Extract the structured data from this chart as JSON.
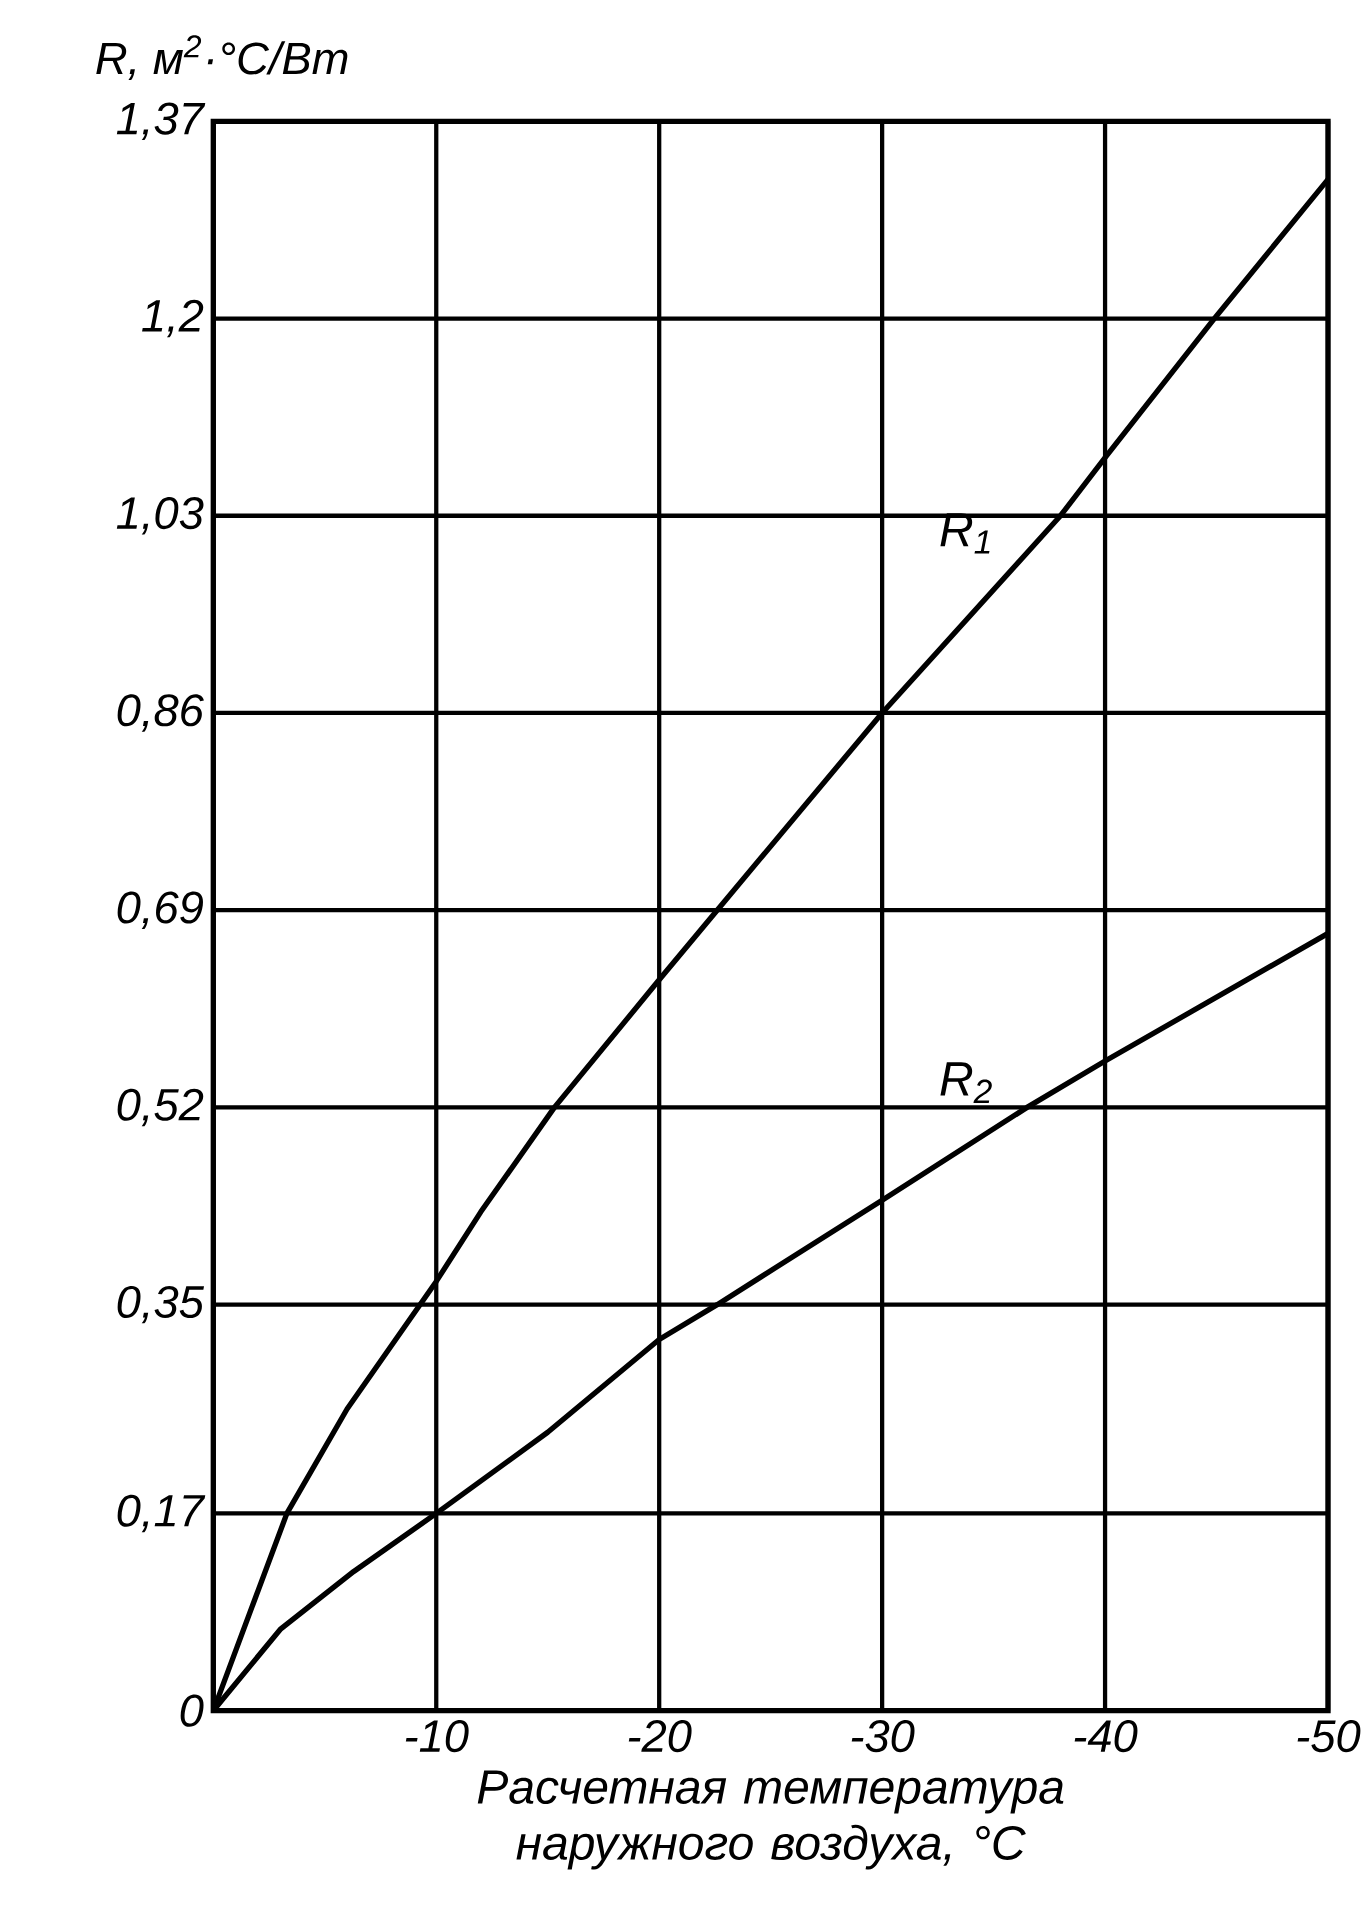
{
  "chart_data": {
    "type": "line",
    "ylabel": "R, м$^{2}$·°C/Вт",
    "xlabel": "Расчетная температура наружного воздуха, °C",
    "xlim": [
      0,
      -50
    ],
    "xticks": [
      -10,
      -20,
      -30,
      -40,
      -50
    ],
    "ylim": [
      0,
      1.37
    ],
    "yticks": [
      0,
      {
        "value": 0.17,
        "label": "0,17"
      },
      {
        "value": 0.35,
        "label": "0,35"
      },
      {
        "value": 0.52,
        "label": "0,52"
      },
      {
        "value": 0.69,
        "label": "0,69"
      },
      {
        "value": 0.86,
        "label": "0,86"
      },
      {
        "value": 1.03,
        "label": "1,03"
      },
      {
        "value": 1.2,
        "label": "1,2"
      },
      {
        "value": 1.37,
        "label": "1,37"
      }
    ],
    "grid": true,
    "marker": "none",
    "line_style": "solid",
    "series": [
      {
        "name": "R$_{1}$",
        "color": "#000000",
        "x": [
          0,
          -3.3,
          -6,
          -10,
          -12,
          -15.3,
          -20,
          -22.6,
          -30,
          -38,
          -40,
          -44.9,
          -50
        ],
        "values": [
          0,
          0.17,
          0.26,
          0.37,
          0.43,
          0.52,
          0.63,
          0.69,
          0.86,
          1.03,
          1.08,
          1.2,
          1.32
        ]
      },
      {
        "name": "R$_{2}$",
        "color": "#000000",
        "x": [
          0,
          -3,
          -6.3,
          -10,
          -15,
          -20,
          -22.6,
          -30,
          -36.5,
          -40,
          -50
        ],
        "values": [
          0,
          0.07,
          0.12,
          0.17,
          0.24,
          0.32,
          0.35,
          0.44,
          0.52,
          0.56,
          0.67
        ]
      }
    ]
  }
}
